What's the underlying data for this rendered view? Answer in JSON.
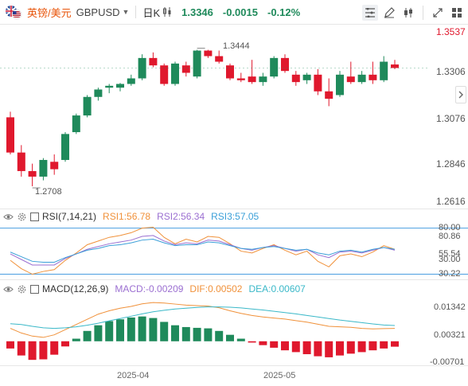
{
  "header": {
    "symbol_cn": "英镑/美元",
    "symbol_code": "GBPUSD",
    "period": "日K",
    "price": "1.3346",
    "change": "-0.0015",
    "change_pct": "-0.12%"
  },
  "icons": [
    "flag-icon",
    "candlestick-settings-icon",
    "pencil-icon",
    "chart-type-icon",
    "fullscreen-icon",
    "dashboard-icon",
    "eye-icon",
    "settings-icon",
    "chevron-right-icon"
  ],
  "colors": {
    "up": "#1f8a5b",
    "down": "#e0182d",
    "accent": "#e8540a",
    "rsi1": "#f0913a",
    "rsi2": "#9b6fd1",
    "rsi3": "#3a9fd8",
    "dif": "#f0913a",
    "dea": "#3ab8c8"
  },
  "chart_data": [
    {
      "type": "candlestick",
      "title": "GBPUSD 日K",
      "price_axis_ticks": [
        "1.3537",
        "1.3306",
        "1.3076",
        "1.2846",
        "1.2616"
      ],
      "time_axis_ticks": [
        "2025-04",
        "2025-05"
      ],
      "annotations": {
        "high": "1.3444",
        "low": "1.2708"
      },
      "current_price": "1.3346",
      "ylim": [
        1.2588,
        1.3584
      ],
      "candles": [
        [
          1.308,
          1.311,
          1.288,
          1.289
        ],
        [
          1.289,
          1.293,
          1.276,
          1.279
        ],
        [
          1.279,
          1.283,
          1.2708,
          1.276
        ],
        [
          1.276,
          1.286,
          1.274,
          1.285
        ],
        [
          1.284,
          1.288,
          1.277,
          1.28
        ],
        [
          1.285,
          1.3,
          1.284,
          1.299
        ],
        [
          1.3,
          1.31,
          1.299,
          1.309
        ],
        [
          1.309,
          1.32,
          1.308,
          1.319
        ],
        [
          1.319,
          1.324,
          1.317,
          1.323
        ],
        [
          1.324,
          1.326,
          1.321,
          1.325
        ],
        [
          1.324,
          1.3265,
          1.322,
          1.326
        ],
        [
          1.326,
          1.331,
          1.325,
          1.329
        ],
        [
          1.329,
          1.342,
          1.328,
          1.34
        ],
        [
          1.34,
          1.343,
          1.335,
          1.336
        ],
        [
          1.336,
          1.337,
          1.325,
          1.326
        ],
        [
          1.326,
          1.338,
          1.325,
          1.337
        ],
        [
          1.336,
          1.338,
          1.33,
          1.332
        ],
        [
          1.33,
          1.3444,
          1.329,
          1.344
        ],
        [
          1.344,
          1.3444,
          1.34,
          1.341
        ],
        [
          1.341,
          1.344,
          1.337,
          1.338
        ],
        [
          1.336,
          1.337,
          1.328,
          1.329
        ],
        [
          1.329,
          1.332,
          1.327,
          1.328
        ],
        [
          1.33,
          1.339,
          1.326,
          1.327
        ],
        [
          1.327,
          1.332,
          1.325,
          1.33
        ],
        [
          1.33,
          1.341,
          1.329,
          1.34
        ],
        [
          1.34,
          1.342,
          1.332,
          1.333
        ],
        [
          1.331,
          1.333,
          1.325,
          1.327
        ],
        [
          1.328,
          1.332,
          1.326,
          1.331
        ],
        [
          1.331,
          1.334,
          1.32,
          1.322
        ],
        [
          1.322,
          1.329,
          1.314,
          1.318
        ],
        [
          1.32,
          1.333,
          1.319,
          1.331
        ],
        [
          1.33,
          1.338,
          1.326,
          1.327
        ],
        [
          1.327,
          1.333,
          1.326,
          1.331
        ],
        [
          1.331,
          1.338,
          1.326,
          1.328
        ],
        [
          1.328,
          1.341,
          1.327,
          1.338
        ],
        [
          1.3365,
          1.339,
          1.334,
          1.3346
        ]
      ]
    },
    {
      "type": "line",
      "title": "RSI(7,14,21)",
      "legend": [
        "RSI1:56.78",
        "RSI2:56.34",
        "RSI3:57.05"
      ],
      "ylim": [
        27,
        84
      ],
      "axis_ticks": [
        "80.00",
        "80.86",
        "55.54",
        "30.00",
        "30.22"
      ],
      "reference_lines": [
        80,
        30
      ],
      "series": [
        {
          "name": "RSI1",
          "values": [
            45,
            36,
            30,
            33,
            35,
            45,
            53,
            62,
            66,
            70,
            72,
            75,
            80,
            81,
            70,
            63,
            68,
            65,
            71,
            70,
            63,
            55,
            53,
            58,
            62,
            56,
            51,
            55,
            44,
            38,
            50,
            52,
            49,
            54,
            61,
            57
          ]
        },
        {
          "name": "RSI2",
          "values": [
            52,
            46,
            40,
            40,
            40,
            47,
            52,
            57,
            60,
            63,
            65,
            67,
            71,
            72,
            66,
            62,
            64,
            63,
            67,
            66,
            62,
            58,
            56,
            59,
            61,
            58,
            55,
            57,
            51,
            48,
            54,
            55,
            53,
            56,
            59,
            56
          ]
        },
        {
          "name": "RSI3",
          "values": [
            54,
            49,
            44,
            43,
            43,
            48,
            52,
            56,
            58,
            61,
            62,
            64,
            67,
            68,
            64,
            61,
            62,
            62,
            65,
            64,
            61,
            58,
            57,
            59,
            60,
            58,
            56,
            57,
            53,
            51,
            55,
            56,
            54,
            57,
            59,
            57
          ]
        }
      ]
    },
    {
      "type": "bar+line",
      "title": "MACD(12,26,9)",
      "legend": [
        "MACD:-0.00209",
        "DIF:0.00502",
        "DEA:0.00607"
      ],
      "ylim": [
        -0.009,
        0.0175
      ],
      "axis_ticks": [
        "0.01342",
        "0.00321",
        "-0.00701"
      ],
      "series": [
        {
          "name": "MACD",
          "values": [
            -0.0028,
            -0.0055,
            -0.0072,
            -0.007,
            -0.0052,
            -0.002,
            0.001,
            0.004,
            0.0062,
            0.0078,
            0.0085,
            0.0092,
            0.0096,
            0.009,
            0.0075,
            0.0062,
            0.0055,
            0.0052,
            0.005,
            0.004,
            0.0025,
            0.001,
            -0.0005,
            -0.0015,
            -0.0025,
            -0.0035,
            -0.0042,
            -0.005,
            -0.0058,
            -0.0062,
            -0.0055,
            -0.0048,
            -0.0042,
            -0.0035,
            -0.0028,
            -0.0021
          ]
        },
        {
          "name": "DIF",
          "values": [
            0.005,
            0.0032,
            0.002,
            0.0015,
            0.0025,
            0.0045,
            0.0065,
            0.0085,
            0.0105,
            0.0118,
            0.0128,
            0.0135,
            0.0145,
            0.015,
            0.0148,
            0.0144,
            0.014,
            0.0138,
            0.0136,
            0.013,
            0.0118,
            0.0108,
            0.01,
            0.0094,
            0.009,
            0.0086,
            0.008,
            0.0074,
            0.0066,
            0.0058,
            0.0056,
            0.0054,
            0.005,
            0.0048,
            0.0049,
            0.005
          ]
        },
        {
          "name": "DEA",
          "values": [
            0.0068,
            0.0065,
            0.0058,
            0.0052,
            0.005,
            0.0052,
            0.0056,
            0.0062,
            0.007,
            0.0079,
            0.0088,
            0.0097,
            0.0106,
            0.0114,
            0.012,
            0.0125,
            0.0128,
            0.0131,
            0.0133,
            0.0133,
            0.0132,
            0.0129,
            0.0125,
            0.0121,
            0.0116,
            0.0111,
            0.0106,
            0.01,
            0.0094,
            0.0088,
            0.0082,
            0.0077,
            0.0072,
            0.0067,
            0.0063,
            0.0061
          ]
        }
      ]
    }
  ]
}
